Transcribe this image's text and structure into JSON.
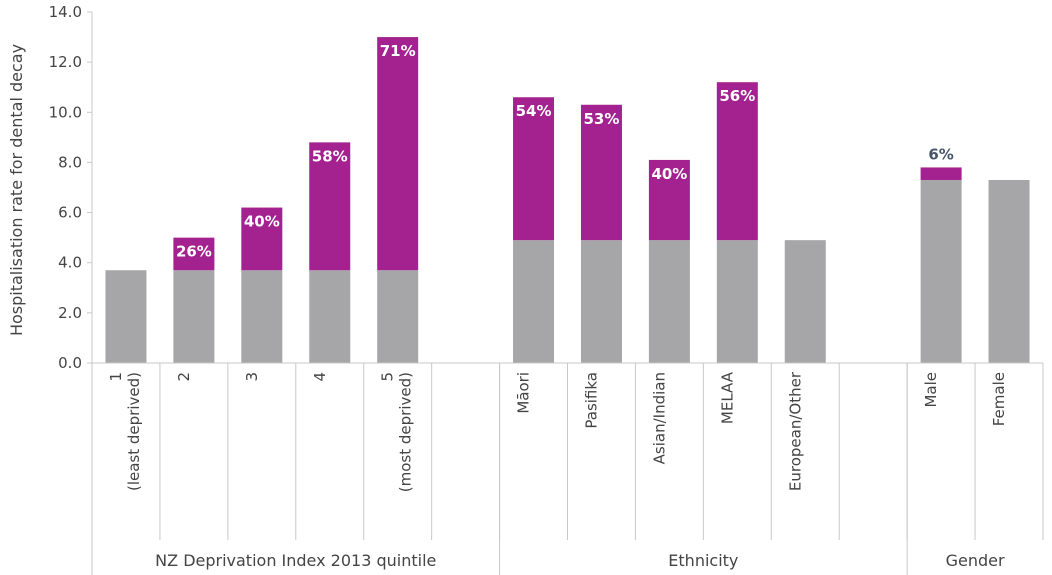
{
  "chart_data": {
    "type": "bar",
    "stacked": true,
    "ylabel": "Hospitalisation rate for dental decay",
    "ylim": [
      0,
      14
    ],
    "yticks": [
      "0.0",
      "2.0",
      "4.0",
      "6.0",
      "8.0",
      "10.0",
      "12.0",
      "14.0"
    ],
    "grid": false,
    "colors": {
      "base": "#a6a6a9",
      "excess": "#a3228f",
      "label_outside": "#45556b",
      "axis": "#c8c8c8"
    },
    "groups": [
      {
        "label": "NZ Deprivation Index 2013 quintile",
        "slots": 6
      },
      {
        "label": "Ethnicity",
        "slots": 6
      },
      {
        "label": "Gender",
        "slots": 2
      }
    ],
    "categories": [
      {
        "label": "1",
        "sublabel": "(least deprived)",
        "base": 3.7,
        "excess": 0,
        "pct": "",
        "slot": 0
      },
      {
        "label": "2",
        "sublabel": "",
        "base": 3.7,
        "excess": 1.3,
        "pct": "26%",
        "slot": 1
      },
      {
        "label": "3",
        "sublabel": "",
        "base": 3.7,
        "excess": 2.5,
        "pct": "40%",
        "slot": 2
      },
      {
        "label": "4",
        "sublabel": "",
        "base": 3.7,
        "excess": 5.1,
        "pct": "58%",
        "slot": 3
      },
      {
        "label": "5",
        "sublabel": "(most deprived)",
        "base": 3.7,
        "excess": 9.3,
        "pct": "71%",
        "slot": 4
      },
      {
        "label": "Māori",
        "sublabel": "",
        "base": 4.9,
        "excess": 5.7,
        "pct": "54%",
        "slot": 6
      },
      {
        "label": "Pasifika",
        "sublabel": "",
        "base": 4.9,
        "excess": 5.4,
        "pct": "53%",
        "slot": 7
      },
      {
        "label": "Asian/Indian",
        "sublabel": "",
        "base": 4.9,
        "excess": 3.2,
        "pct": "40%",
        "slot": 8
      },
      {
        "label": "MELAA",
        "sublabel": "",
        "base": 4.9,
        "excess": 6.3,
        "pct": "56%",
        "slot": 9
      },
      {
        "label": "European/Other",
        "sublabel": "",
        "base": 4.9,
        "excess": 0,
        "pct": "",
        "slot": 10
      },
      {
        "label": "Male",
        "sublabel": "",
        "base": 7.3,
        "excess": 0.5,
        "pct": "6%",
        "slot": 12
      },
      {
        "label": "Female",
        "sublabel": "",
        "base": 7.3,
        "excess": 0,
        "pct": "",
        "slot": 13
      }
    ]
  }
}
